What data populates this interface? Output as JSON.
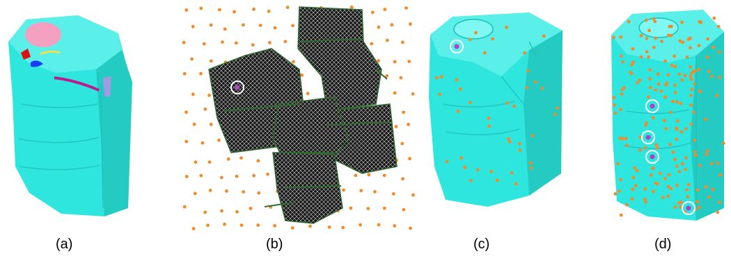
{
  "panels": [
    {
      "id": "a",
      "caption": "(a)"
    },
    {
      "id": "b",
      "caption": "(b)"
    },
    {
      "id": "c",
      "caption": "(c)"
    },
    {
      "id": "d",
      "caption": "(d)"
    }
  ],
  "colors": {
    "mesh_fill": "#2ee6de",
    "mesh_shadow": "#1fbfb7",
    "mesh_highlight": "#7ff7f2",
    "sample_point": "#f28a2a",
    "highlight_point": "#b040c8",
    "circle_marker": "#ffffff",
    "unfolded_mesh": "#1a1a1a",
    "unfolded_edge": "#2f6b2f",
    "region_pink": "#f4a0c0",
    "region_red": "#e01010",
    "region_blue": "#1a3cff",
    "region_yellow": "#f0e050",
    "region_magenta": "#c01890",
    "region_violet": "#a09ae0"
  }
}
